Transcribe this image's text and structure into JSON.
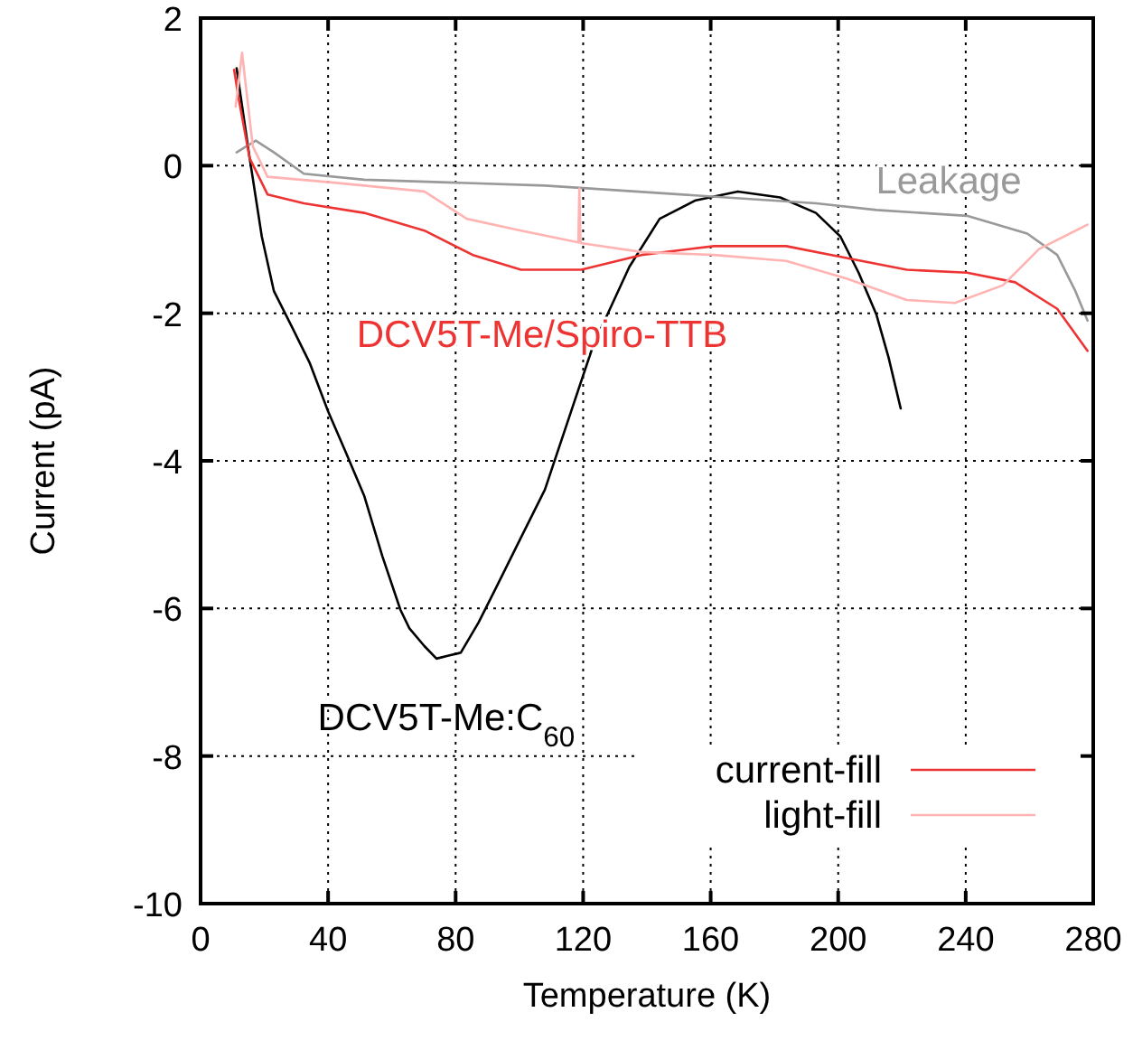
{
  "chart_data": {
    "type": "line",
    "xlabel": "Temperature (K)",
    "ylabel": "Current (pA)",
    "xlim": [
      0,
      280
    ],
    "xticks": [
      0,
      40,
      80,
      120,
      160,
      200,
      240,
      280
    ],
    "ylim": [
      -10,
      2
    ],
    "yticks": [
      -10,
      -8,
      -6,
      -4,
      -2,
      0,
      2
    ],
    "grid": true,
    "legend": "bottom right",
    "line_style": "solid",
    "marker": "none",
    "series": [
      {
        "color": "#000000",
        "x": [
          11.3,
          15.4,
          19.2,
          23,
          28.7,
          34.3,
          40,
          45.7,
          51.3,
          57,
          62.7,
          65.5,
          70.2,
          74,
          77.8,
          81.6,
          87.2,
          92.9,
          100.5,
          108,
          115.6,
          123.2,
          134.5,
          144,
          155.3,
          168.5,
          181.8,
          193,
          200.7,
          206.4,
          212,
          215.8,
          219.6
        ],
        "values": [
          1.32,
          0.1,
          -0.96,
          -1.7,
          -2.19,
          -2.68,
          -3.33,
          -3.9,
          -4.47,
          -5.29,
          -6.02,
          -6.27,
          -6.51,
          -6.68,
          -6.64,
          -6.6,
          -6.19,
          -5.7,
          -5.04,
          -4.39,
          -3.41,
          -2.43,
          -1.37,
          -0.72,
          -0.47,
          -0.35,
          -0.43,
          -0.64,
          -0.96,
          -1.45,
          -2.02,
          -2.6,
          -3.29
        ]
      },
      {
        "color": "#999999",
        "x": [
          11.3,
          17.3,
          23,
          32.4,
          51.3,
          79.7,
          108,
          136.4,
          164.7,
          193.1,
          212,
          240.4,
          259.3,
          268.7,
          274.4,
          278.2
        ],
        "values": [
          0.18,
          0.34,
          0.18,
          -0.11,
          -0.19,
          -0.23,
          -0.27,
          -0.35,
          -0.43,
          -0.51,
          -0.6,
          -0.68,
          -0.92,
          -1.21,
          -1.7,
          -2.1
        ]
      },
      {
        "name": "current-fill",
        "color": "#ee3333",
        "x": [
          10.5,
          12,
          15.4,
          21,
          32.4,
          51.3,
          70.2,
          85.4,
          100.5,
          119.4,
          138.3,
          161,
          183.7,
          202.6,
          221.5,
          240.4,
          255.5,
          268.7,
          278.2
        ],
        "values": [
          1.3,
          0.9,
          0.1,
          -0.39,
          -0.51,
          -0.64,
          -0.88,
          -1.21,
          -1.41,
          -1.41,
          -1.21,
          -1.09,
          -1.09,
          -1.25,
          -1.41,
          -1.45,
          -1.58,
          -1.94,
          -2.51
        ]
      },
      {
        "name": "light-fill",
        "color": "#ffb3b3",
        "x": [
          11,
          13,
          16.4,
          21,
          41.9,
          70.2,
          83.5,
          100.5,
          118.5,
          118.8,
          119.2,
          138.3,
          161,
          183.7,
          202.6,
          221.5,
          236.6,
          251.7,
          263,
          278.2
        ],
        "values": [
          0.8,
          1.53,
          0.26,
          -0.15,
          -0.23,
          -0.35,
          -0.72,
          -0.88,
          -1.04,
          -0.31,
          -1.05,
          -1.17,
          -1.21,
          -1.29,
          -1.53,
          -1.82,
          -1.86,
          -1.62,
          -1.13,
          -0.8
        ]
      }
    ],
    "annotations": [
      "Leakage",
      "DCV5T-Me/Spiro-TTB",
      "DCV5T-Me:C$_{60}$"
    ]
  }
}
